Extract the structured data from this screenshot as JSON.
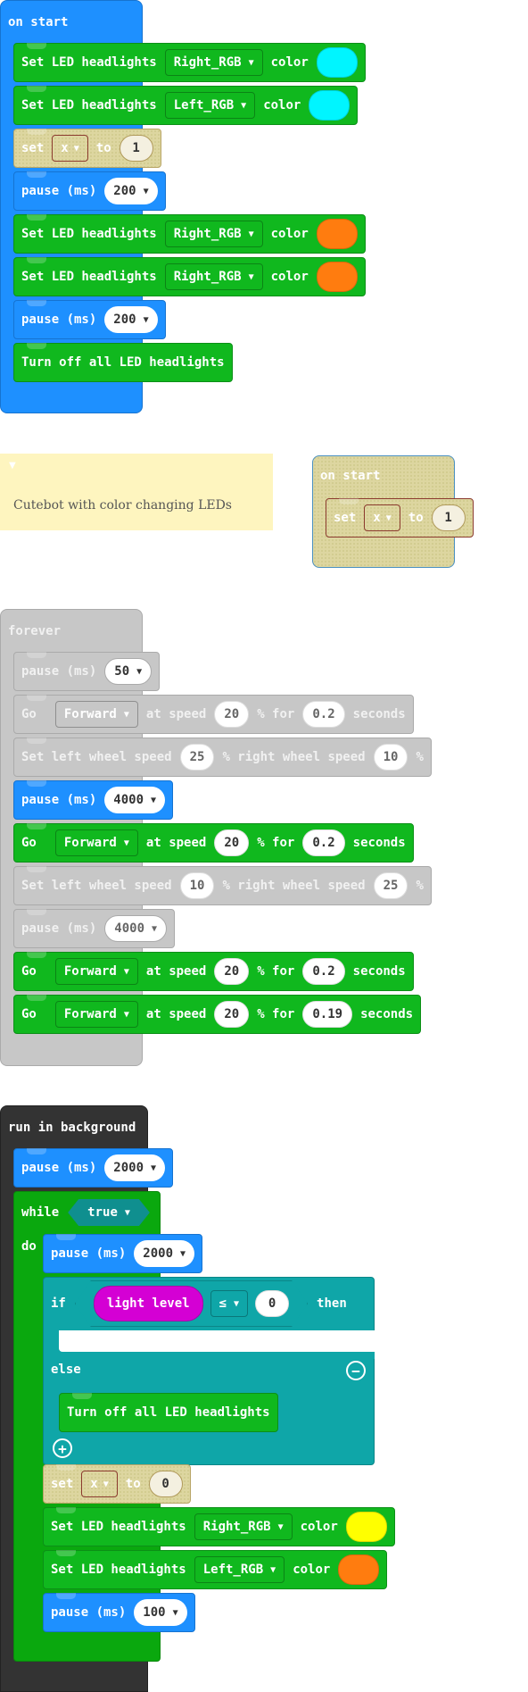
{
  "on_start_1": {
    "hat": "on start",
    "led_label": "Set LED headlights",
    "color_label": "color",
    "rows": [
      {
        "target": "Right_RGB",
        "color": "#00f5ff"
      },
      {
        "target": "Left_RGB",
        "color": "#00f5ff"
      }
    ],
    "set_label": "set",
    "to_label": "to",
    "var": "x",
    "set_value": "1",
    "pause_label": "pause (ms)",
    "pause1": "200",
    "rows2": [
      {
        "target": "Right_RGB",
        "color": "#ff7c0f"
      },
      {
        "target": "Right_RGB",
        "color": "#ff7c0f"
      }
    ],
    "pause2": "200",
    "turn_off": "Turn off all LED headlights"
  },
  "comment": {
    "text": "Cutebot with color changing LEDs"
  },
  "on_start_2": {
    "hat": "on start",
    "set_label": "set",
    "var": "x",
    "to_label": "to",
    "value": "1"
  },
  "forever": {
    "hat": "forever",
    "pause_label": "pause (ms)",
    "go_label": "Go",
    "dir": "Forward",
    "at_speed": "at speed",
    "pct_for": "% for",
    "seconds": "seconds",
    "wheel_left": "Set left wheel speed",
    "wheel_mid": "% right wheel speed",
    "pct": "%",
    "p1": "50",
    "go1": {
      "speed": "20",
      "time": "0.2"
    },
    "w1": {
      "left": "25",
      "right": "10"
    },
    "p2": "4000",
    "go2": {
      "speed": "20",
      "time": "0.2"
    },
    "w2": {
      "left": "10",
      "right": "25"
    },
    "p3": "4000",
    "go3": {
      "speed": "20",
      "time": "0.2"
    },
    "go4": {
      "speed": "20",
      "time": "0.19"
    }
  },
  "bg": {
    "hat": "run in background",
    "pause_label": "pause (ms)",
    "p1": "2000",
    "while_label": "while",
    "cond": "true",
    "do_label": "do",
    "p2": "2000",
    "if_label": "if",
    "sensor": "light level",
    "op": "≤",
    "threshold": "0",
    "then_label": "then",
    "else_label": "else",
    "turn_off": "Turn off all LED headlights",
    "set_label": "set",
    "var": "x",
    "to_label": "to",
    "set_value": "0",
    "led_label": "Set LED headlights",
    "color_label": "color",
    "led1": {
      "target": "Right_RGB",
      "color": "#ffff00"
    },
    "led2": {
      "target": "Left_RGB",
      "color": "#ff7c0f"
    },
    "p3": "100"
  }
}
